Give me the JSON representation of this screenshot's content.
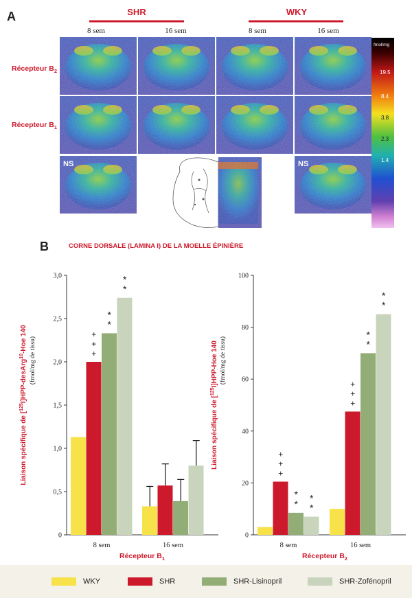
{
  "panel_a": {
    "letter": "A",
    "groups": [
      {
        "name": "SHR",
        "ages": [
          "8 sem",
          "16 sem"
        ]
      },
      {
        "name": "WKY",
        "ages": [
          "8 sem",
          "16 sem"
        ]
      }
    ],
    "row_labels": [
      {
        "main": "Récepteur B",
        "sub": "2"
      },
      {
        "main": "Récepteur B",
        "sub": "1"
      }
    ],
    "ns_label": "NS",
    "colorbar": {
      "unit": "fmol/mg",
      "ticks": [
        "19.5",
        "8.4",
        "3.8",
        "2.3",
        "1.4"
      ]
    }
  },
  "panel_b": {
    "letter": "B",
    "title": "CORNE DORSALE (LAMINA I) DE LA MOELLE ÉPINIÈRE"
  },
  "legend": [
    {
      "name": "WKY",
      "color": "#f7e24a"
    },
    {
      "name": "SHR",
      "color": "#cc1a2c"
    },
    {
      "name": "SHR-Lisinopril",
      "color": "#93ad76"
    },
    {
      "name": "SHR-Zofénopril",
      "color": "#c8d4bc"
    }
  ],
  "chart_data": [
    {
      "type": "bar",
      "ylabel": "Liaison spécifique de [125I]HPP-desArg10-Hoe 140",
      "ylabel_unit": "(fmol/mg de tissu)",
      "xlabel": "Récepteur B1",
      "categories": [
        "8 sem",
        "16 sem"
      ],
      "ylim": [
        0,
        3.0
      ],
      "yticks": [
        "0",
        "0,5",
        "1,0",
        "1,5",
        "2,0",
        "2,5",
        "3,0"
      ],
      "series": [
        {
          "name": "WKY",
          "values": [
            1.13,
            0.33
          ],
          "errors": [
            null,
            0.23
          ]
        },
        {
          "name": "SHR",
          "values": [
            2.0,
            0.57
          ],
          "errors": [
            null,
            0.25
          ]
        },
        {
          "name": "SHR-Lisinopril",
          "values": [
            2.33,
            0.39
          ],
          "errors": [
            null,
            0.25
          ]
        },
        {
          "name": "SHR-Zofénopril",
          "values": [
            2.74,
            0.8
          ],
          "errors": [
            null,
            0.29
          ]
        }
      ],
      "annotations": [
        {
          "category": "8 sem",
          "series": "SHR",
          "text": "+++"
        },
        {
          "category": "8 sem",
          "series": "SHR-Lisinopril",
          "text": "**"
        },
        {
          "category": "8 sem",
          "series": "SHR-Zofénopril",
          "text": "**"
        }
      ]
    },
    {
      "type": "bar",
      "ylabel": "Liaison spécifique de [125I]HPP-Hoe 140",
      "ylabel_unit": "(fmol/mg de tissu)",
      "xlabel": "Récepteur B2",
      "categories": [
        "8 sem",
        "16 sem"
      ],
      "ylim": [
        0,
        100
      ],
      "yticks": [
        "0",
        "20",
        "40",
        "60",
        "80",
        "100"
      ],
      "series": [
        {
          "name": "WKY",
          "values": [
            3,
            10
          ]
        },
        {
          "name": "SHR",
          "values": [
            20.5,
            47.5
          ]
        },
        {
          "name": "SHR-Lisinopril",
          "values": [
            8.5,
            70
          ]
        },
        {
          "name": "SHR-Zofénopril",
          "values": [
            7,
            85
          ]
        }
      ],
      "annotations": [
        {
          "category": "8 sem",
          "series": "SHR",
          "text": "+++"
        },
        {
          "category": "8 sem",
          "series": "SHR-Lisinopril",
          "text": "**"
        },
        {
          "category": "8 sem",
          "series": "SHR-Zofénopril",
          "text": "**"
        },
        {
          "category": "16 sem",
          "series": "SHR",
          "text": "+++"
        },
        {
          "category": "16 sem",
          "series": "SHR-Lisinopril",
          "text": "**"
        },
        {
          "category": "16 sem",
          "series": "SHR-Zofénopril",
          "text": "**"
        }
      ]
    }
  ]
}
